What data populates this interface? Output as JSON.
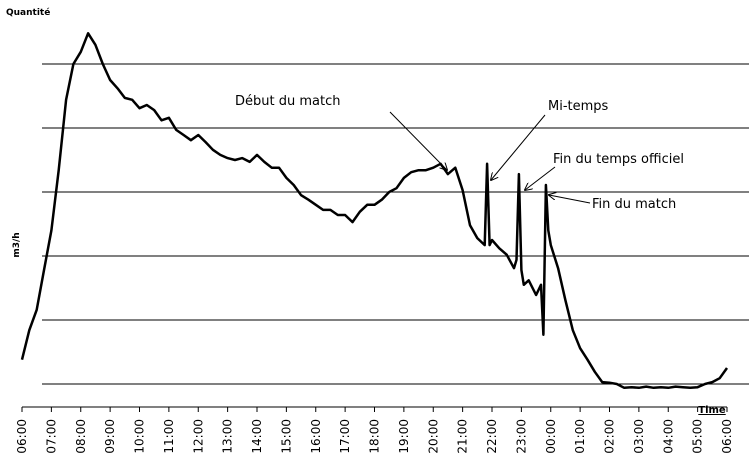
{
  "chart_data": {
    "type": "line",
    "title": "Quantité",
    "y_label": "m3/h",
    "x_label": "Time",
    "annotations": [
      "Début du match",
      "Mi-temps",
      "Fin du temps officiel",
      "Fin du match"
    ],
    "xticks": [
      "06:00",
      "07:00",
      "08:00",
      "09:00",
      "10:00",
      "11:00",
      "12:00",
      "13:00",
      "14:00",
      "15:00",
      "16:00",
      "17:00",
      "18:00",
      "19:00",
      "20:00",
      "21:00",
      "22:00",
      "23:00",
      "00:00",
      "01:00",
      "02:00",
      "03:00",
      "04:00",
      "05:00",
      "06:00"
    ],
    "ylim": [
      -0.4,
      5.6
    ],
    "yticks": [
      0,
      1,
      2,
      3,
      4,
      5
    ],
    "grid": true,
    "series": [
      {
        "color": "#000000",
        "x": [
          "06:00",
          "06:15",
          "06:30",
          "06:45",
          "07:00",
          "07:15",
          "07:30",
          "07:45",
          "08:00",
          "08:15",
          "08:30",
          "08:45",
          "09:00",
          "09:15",
          "09:30",
          "09:45",
          "10:00",
          "10:15",
          "10:30",
          "10:45",
          "11:00",
          "11:15",
          "11:30",
          "11:45",
          "12:00",
          "12:15",
          "12:30",
          "12:45",
          "13:00",
          "13:15",
          "13:30",
          "13:45",
          "14:00",
          "14:15",
          "14:30",
          "14:45",
          "15:00",
          "15:15",
          "15:30",
          "15:45",
          "16:00",
          "16:15",
          "16:30",
          "16:45",
          "17:00",
          "17:15",
          "17:30",
          "17:45",
          "18:00",
          "18:15",
          "18:30",
          "18:45",
          "19:00",
          "19:15",
          "19:30",
          "19:45",
          "20:00",
          "20:15",
          "20:30",
          "20:45",
          "21:00",
          "21:15",
          "21:30",
          "21:45",
          "21:50",
          "21:55",
          "22:00",
          "22:15",
          "22:30",
          "22:45",
          "22:50",
          "22:55",
          "23:00",
          "23:05",
          "23:15",
          "23:30",
          "23:40",
          "23:45",
          "23:50",
          "23:55",
          "00:00",
          "00:15",
          "00:30",
          "00:45",
          "01:00",
          "01:15",
          "01:30",
          "01:45",
          "02:00",
          "02:15",
          "02:30",
          "02:45",
          "03:00",
          "03:15",
          "03:30",
          "03:45",
          "04:00",
          "04:15",
          "04:30",
          "04:45",
          "05:00",
          "05:15",
          "05:30",
          "05:45",
          "06:00"
        ],
        "values": [
          0.38,
          0.84,
          1.16,
          1.78,
          2.4,
          3.34,
          4.44,
          5.0,
          5.19,
          5.48,
          5.3,
          5.0,
          4.75,
          4.62,
          4.47,
          4.44,
          4.31,
          4.36,
          4.28,
          4.12,
          4.16,
          3.97,
          3.89,
          3.81,
          3.89,
          3.78,
          3.66,
          3.58,
          3.53,
          3.5,
          3.53,
          3.47,
          3.58,
          3.47,
          3.38,
          3.38,
          3.22,
          3.11,
          2.95,
          2.88,
          2.8,
          2.72,
          2.72,
          2.64,
          2.64,
          2.53,
          2.69,
          2.8,
          2.8,
          2.88,
          3.0,
          3.06,
          3.22,
          3.31,
          3.34,
          3.34,
          3.38,
          3.44,
          3.28,
          3.38,
          3.03,
          2.48,
          2.28,
          2.17,
          3.44,
          2.17,
          2.25,
          2.12,
          2.02,
          1.81,
          1.94,
          3.28,
          1.78,
          1.55,
          1.62,
          1.39,
          1.55,
          0.77,
          3.11,
          2.4,
          2.17,
          1.81,
          1.31,
          0.84,
          0.56,
          0.38,
          0.19,
          0.03,
          0.02,
          0,
          -0.06,
          -0.05,
          -0.06,
          -0.04,
          -0.06,
          -0.05,
          -0.06,
          -0.04,
          -0.05,
          -0.06,
          -0.05,
          0,
          0.03,
          0.09,
          0.25
        ]
      }
    ]
  }
}
